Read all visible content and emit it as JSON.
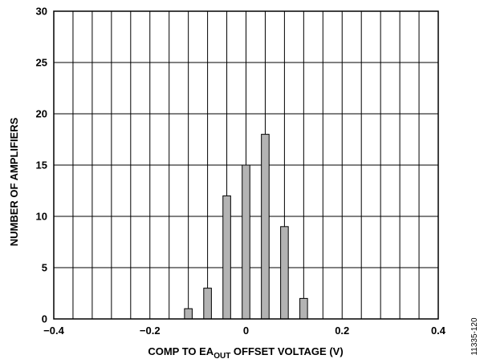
{
  "chart_data": {
    "type": "bar",
    "title": "",
    "xlabel": {
      "pre": "COMP TO EA",
      "sub": "OUT",
      "post": " OFFSET VOLTAGE (V)"
    },
    "ylabel": "NUMBER OF AMPLIFIERS",
    "xlim": [
      -0.4,
      0.4
    ],
    "ylim": [
      0,
      30
    ],
    "x_ticks": [
      -0.4,
      -0.2,
      0,
      0.2,
      0.4
    ],
    "x_tick_labels": [
      "−0.4",
      "−0.2",
      "0",
      "0.2",
      "0.4"
    ],
    "y_ticks": [
      0,
      5,
      10,
      15,
      20,
      25,
      30
    ],
    "y_tick_labels": [
      "0",
      "5",
      "10",
      "15",
      "20",
      "25",
      "30"
    ],
    "x_grid_step": 0.04,
    "y_grid_step": 5,
    "grid": true,
    "bar_width": 0.016,
    "bar_color": "#b3b3b3",
    "x": [
      -0.12,
      -0.08,
      -0.04,
      0.0,
      0.04,
      0.08,
      0.12
    ],
    "values": [
      1,
      3,
      12,
      15,
      18,
      9,
      2
    ]
  },
  "figure_id": "11335-120"
}
